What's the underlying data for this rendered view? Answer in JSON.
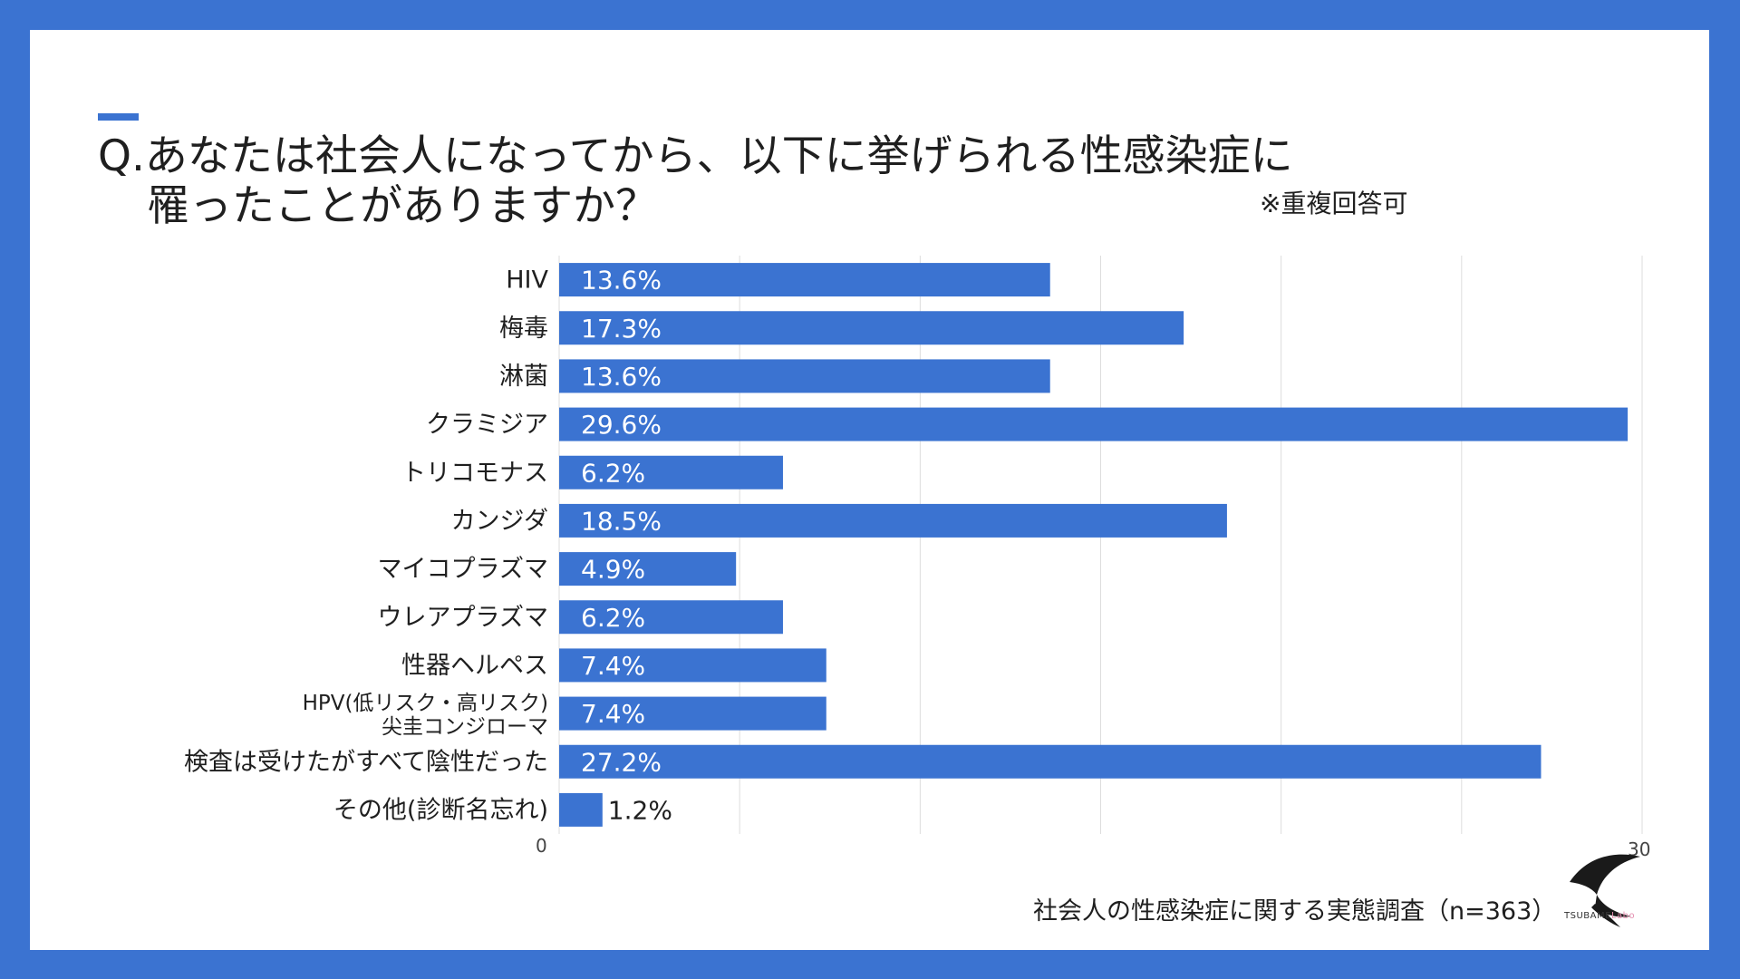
{
  "question": {
    "line1": "Q.あなたは社会人になってから、以下に挙げられる性感染症に",
    "line2": "罹ったことがありますか？",
    "note": "※重複回答可"
  },
  "colors": {
    "background": "#3B73D1",
    "bar": "#3B73D1",
    "grid": "#dddddd",
    "text": "#1f1f1f"
  },
  "chart_data": {
    "type": "bar",
    "orientation": "horizontal",
    "categories": [
      "HIV",
      "梅毒",
      "淋菌",
      "クラミジア",
      "トリコモナス",
      "カンジダ",
      "マイコプラズマ",
      "ウレアプラズマ",
      "性器ヘルペス",
      [
        "HPV(低リスク・高リスク)",
        "尖圭コンジローマ"
      ],
      "検査は受けたがすべて陰性だった",
      "その他(診断名忘れ)"
    ],
    "values": [
      13.6,
      17.3,
      13.6,
      29.6,
      6.2,
      18.5,
      4.9,
      6.2,
      7.4,
      7.4,
      27.2,
      1.2
    ],
    "value_labels": [
      "13.6%",
      "17.3%",
      "13.6%",
      "29.6%",
      "6.2%",
      "18.5%",
      "4.9%",
      "6.2%",
      "7.4%",
      "7.4%",
      "27.2%",
      "1.2%"
    ],
    "xlim": [
      0,
      30
    ],
    "tick_labels": {
      "min": "0",
      "max": "30"
    },
    "grid_step": 5,
    "grid": true
  },
  "footer": {
    "survey": "社会人の性感染症に関する実態調査（n=363）",
    "logo_main": "TSUBAME",
    "logo_sub": "Labo"
  }
}
